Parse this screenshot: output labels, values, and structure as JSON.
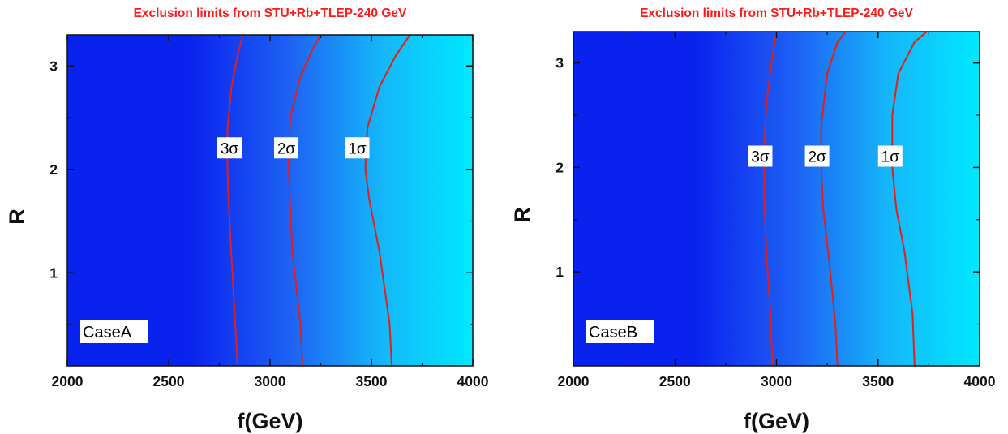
{
  "colors": {
    "title": "#ff1a1a",
    "contour": "#e0201a",
    "color_low": "#0a22ee",
    "color_high": "#00e8ff"
  },
  "chart_data": [
    {
      "type": "heatmap",
      "title": "Exclusion limits from STU+Rb+TLEP-240 GeV",
      "xlabel": "f(GeV)",
      "ylabel": "R",
      "xlim": [
        2000,
        4000
      ],
      "ylim": [
        0.1,
        3.3
      ],
      "xticks": [
        "2000",
        "2500",
        "3000",
        "3500",
        "4000"
      ],
      "yticks": [
        "1",
        "2",
        "3"
      ],
      "annotation": "CaseA",
      "grid": false,
      "colormap": "blue-to-cyan, increasing with f",
      "contours": [
        {
          "label": "3σ",
          "label_at": [
            2800,
            2.2
          ],
          "points": [
            [
              2840,
              0.1
            ],
            [
              2820,
              0.8
            ],
            [
              2800,
              1.5
            ],
            [
              2790,
              2.0
            ],
            [
              2790,
              2.4
            ],
            [
              2810,
              2.8
            ],
            [
              2840,
              3.1
            ],
            [
              2865,
              3.3
            ]
          ]
        },
        {
          "label": "2σ",
          "label_at": [
            3080,
            2.2
          ],
          "points": [
            [
              3160,
              0.1
            ],
            [
              3150,
              0.5
            ],
            [
              3110,
              1.2
            ],
            [
              3100,
              1.6
            ],
            [
              3090,
              2.1
            ],
            [
              3100,
              2.5
            ],
            [
              3150,
              2.9
            ],
            [
              3220,
              3.2
            ],
            [
              3250,
              3.3
            ]
          ]
        },
        {
          "label": "1σ",
          "label_at": [
            3430,
            2.2
          ],
          "points": [
            [
              3600,
              0.1
            ],
            [
              3590,
              0.5
            ],
            [
              3540,
              1.2
            ],
            [
              3490,
              1.7
            ],
            [
              3470,
              2.0
            ],
            [
              3480,
              2.4
            ],
            [
              3540,
              2.8
            ],
            [
              3620,
              3.1
            ],
            [
              3690,
              3.3
            ]
          ]
        }
      ]
    },
    {
      "type": "heatmap",
      "title": "Exclusion limits from STU+Rb+TLEP-240 GeV",
      "xlabel": "f(GeV)",
      "ylabel": "R",
      "xlim": [
        2000,
        4000
      ],
      "ylim": [
        0.1,
        3.3
      ],
      "xticks": [
        "2000",
        "2500",
        "3000",
        "3500",
        "4000"
      ],
      "yticks": [
        "1",
        "2",
        "3"
      ],
      "annotation": "CaseB",
      "grid": false,
      "colormap": "blue-to-cyan, increasing with f",
      "contours": [
        {
          "label": "3σ",
          "label_at": [
            2920,
            2.1
          ],
          "points": [
            [
              2980,
              0.1
            ],
            [
              2970,
              0.6
            ],
            [
              2950,
              1.2
            ],
            [
              2940,
              1.7
            ],
            [
              2940,
              2.2
            ],
            [
              2950,
              2.6
            ],
            [
              2975,
              3.0
            ],
            [
              3000,
              3.3
            ]
          ]
        },
        {
          "label": "2σ",
          "label_at": [
            3200,
            2.1
          ],
          "points": [
            [
              3300,
              0.1
            ],
            [
              3290,
              0.5
            ],
            [
              3260,
              1.1
            ],
            [
              3230,
              1.6
            ],
            [
              3220,
              2.0
            ],
            [
              3220,
              2.4
            ],
            [
              3250,
              2.9
            ],
            [
              3300,
              3.2
            ],
            [
              3340,
              3.3
            ]
          ]
        },
        {
          "label": "1σ",
          "label_at": [
            3560,
            2.1
          ],
          "points": [
            [
              3680,
              0.1
            ],
            [
              3670,
              0.6
            ],
            [
              3630,
              1.2
            ],
            [
              3590,
              1.6
            ],
            [
              3570,
              2.0
            ],
            [
              3570,
              2.5
            ],
            [
              3600,
              2.9
            ],
            [
              3680,
              3.2
            ],
            [
              3740,
              3.3
            ]
          ]
        }
      ]
    }
  ]
}
